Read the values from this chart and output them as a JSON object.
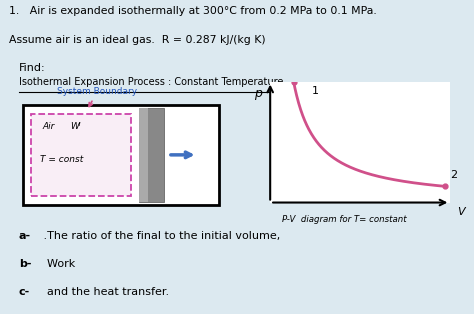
{
  "title_line1": "1.   Air is expanded isothermally at 300°C from 0.2 MPa to 0.1 MPa.",
  "title_line2": "Assume air is an ideal gas.  R = 0.287 kJ/(kg K)",
  "find_text": "Find:",
  "diagram_title": "Isothermal Expansion Process : Constant Temperature",
  "system_boundary_label": "System Boundary",
  "air_label": "Air",
  "w_label": "Wᴵ",
  "T_label": "T = const",
  "pv_label": "P-V  diagram for T= constant",
  "point1_label": "1",
  "point2_label": "2",
  "p_label": "p",
  "v_label": "V",
  "bg_color": "#dce9f0",
  "diagram_box_bg": "#ffffff",
  "pink_color": "#d0508a",
  "blue_arrow_color": "#4070c0",
  "dashed_box_color": "#cc44aa",
  "text_color": "#000000",
  "system_boundary_color": "#2255bb",
  "items": [
    {
      "label": "a-",
      "text": " .The ratio of the final to the initial volume,"
    },
    {
      "label": "b-",
      "text": "  Work"
    },
    {
      "label": "c-",
      "text": "  and the heat transfer."
    }
  ]
}
